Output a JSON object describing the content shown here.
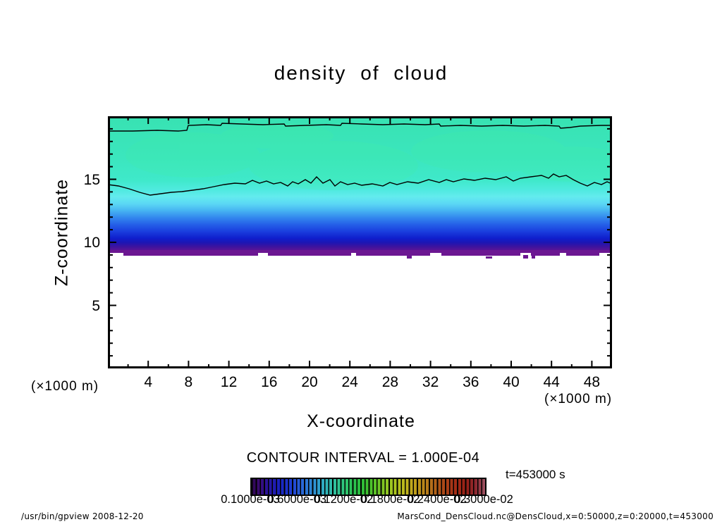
{
  "chart_data": {
    "type": "heatmap",
    "title": "density of cloud",
    "x_axis": {
      "label": "X-coordinate",
      "units": "(×1000 m)",
      "min": 0,
      "max": 50,
      "labeled_ticks": [
        4,
        8,
        12,
        16,
        20,
        24,
        28,
        32,
        36,
        40,
        44,
        48
      ],
      "minor_tick_step": 2
    },
    "y_axis": {
      "label": "Z-coordinate",
      "units": "(×1000 m)",
      "min": 0,
      "max": 20,
      "labeled_ticks": [
        5,
        10,
        15
      ],
      "minor_tick_step": 1
    },
    "contour_interval": "1.000E-04",
    "contour_lines_at_z_approx": [
      19.2,
      14.3
    ],
    "field_summary": {
      "description": "Cloud density fills z ≈ 9 to 20 (×1000 m) across all x 0–50; density increases downward: aquamarine/green ≈ 1–2e-4 near top (z 14–20), cyan to blue ≈ 3e-4–1e-3 (z 10–14), dark blue to purple ≈ 2–3e-3 at the cloud base near z ≈ 9; white (no cloud) below z ≈ 9 with a ragged base edge.",
      "values_estimated": true,
      "vertical_profile_z": [
        20,
        15,
        14,
        13,
        12,
        11,
        10.5,
        10,
        9.5,
        9.2,
        9.0
      ],
      "vertical_profile_density_approx": [
        0.00015,
        0.00018,
        0.0002,
        0.0003,
        0.0005,
        0.0008,
        0.0011,
        0.0015,
        0.002,
        0.0025,
        0.003
      ]
    },
    "colorbar": {
      "labels": [
        "0.1000e-03",
        "0.6000e-03",
        "0.1200e-02",
        "0.1800e-02",
        "0.2400e-02",
        "0.3000e-02"
      ],
      "segments": 58,
      "colors": [
        "#2e0850",
        "#1822c0",
        "#2a6ad8",
        "#2fb4b8",
        "#2cc45e",
        "#2abc38",
        "#86c422",
        "#c0b01c",
        "#b46e1a",
        "#a42e16",
        "#8c2830",
        "#9c5464"
      ]
    }
  },
  "annotations": {
    "contour_interval_text": "CONTOUR INTERVAL = 1.000E-04",
    "time_text": "t=453000 s",
    "units_left": "(×1000 m)",
    "units_right": "(×1000 m)"
  },
  "footer": {
    "left": "/usr/bin/gpview  2008-12-20",
    "right": "MarsCond_DensCloud.nc@DensCloud,x=0:50000,z=0:20000,t=453000"
  }
}
